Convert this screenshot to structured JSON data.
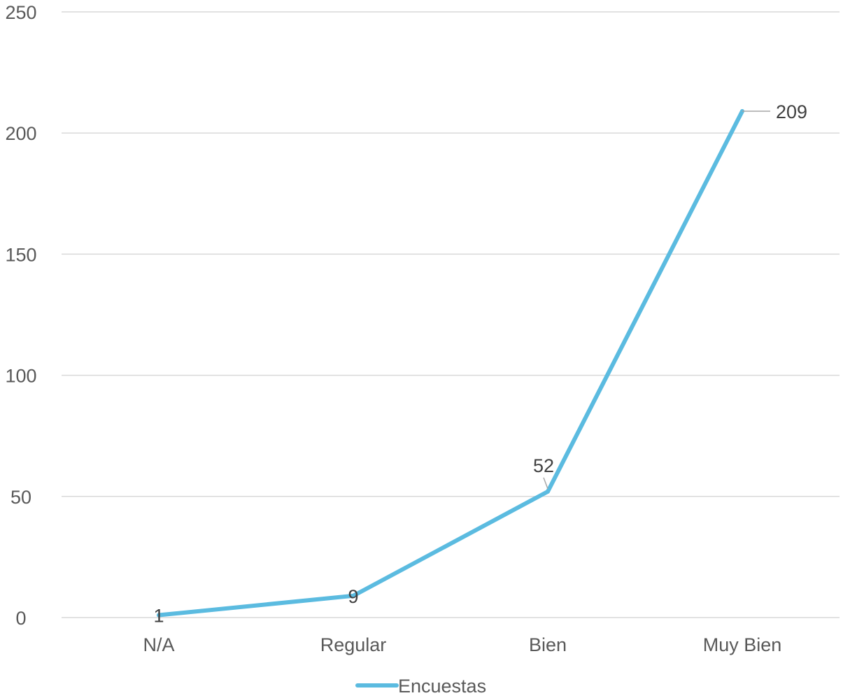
{
  "chart_data": {
    "type": "line",
    "categories": [
      "N/A",
      "Regular",
      "Bien",
      "Muy Bien"
    ],
    "series": [
      {
        "name": "Encuestas",
        "values": [
          1,
          9,
          52,
          209
        ]
      }
    ],
    "ylim": [
      0,
      250
    ],
    "yticks": [
      0,
      50,
      100,
      150,
      200,
      250
    ],
    "grid": true,
    "legend_position": "bottom",
    "colors": {
      "series": "#5bbbe0",
      "grid": "#d9d9d9",
      "text": "#595959"
    }
  }
}
